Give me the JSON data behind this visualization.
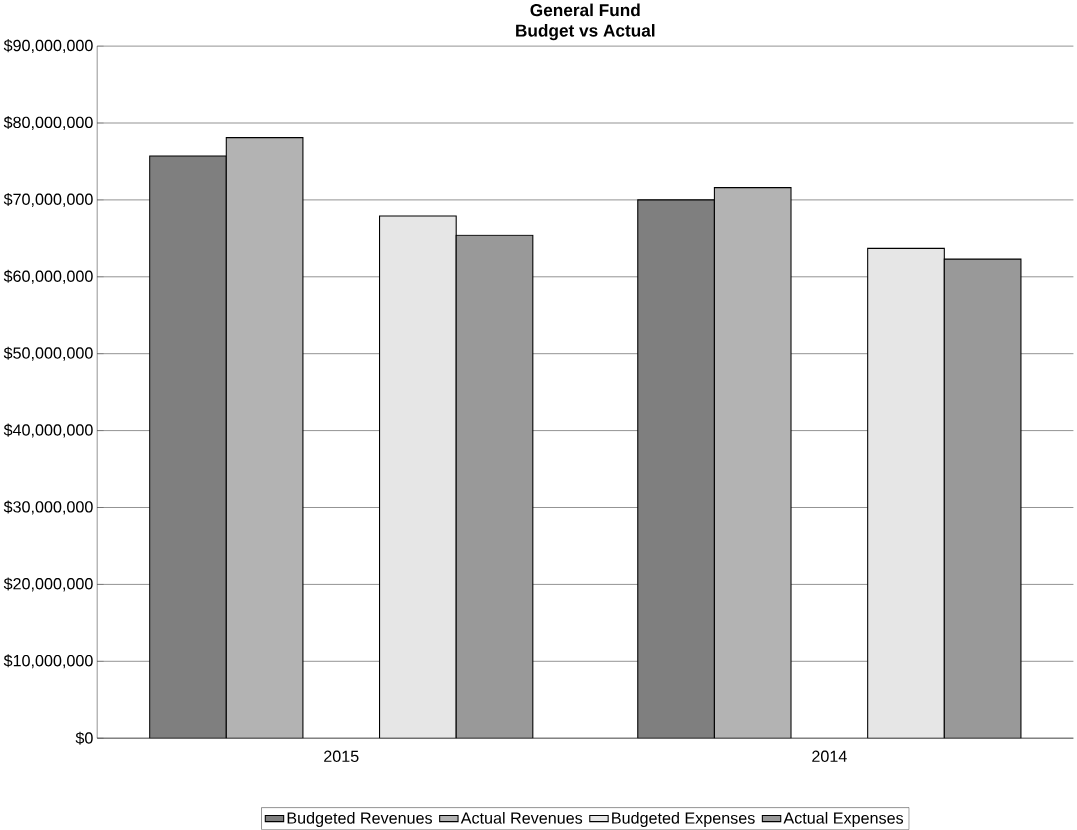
{
  "chart_data": {
    "type": "bar",
    "title": "General Fund",
    "subtitle": "Budget vs Actual",
    "categories": [
      "2015",
      "2014"
    ],
    "series": [
      {
        "name": "Budgeted Revenues",
        "color": "#7f7f7f",
        "values": [
          75700000,
          70000000
        ]
      },
      {
        "name": "Actual Revenues",
        "color": "#b3b3b3",
        "values": [
          78100000,
          71600000
        ]
      },
      {
        "name": "Budgeted Expenses",
        "color": "#e6e6e6",
        "values": [
          67900000,
          63700000
        ]
      },
      {
        "name": "Actual Expenses",
        "color": "#999999",
        "values": [
          65400000,
          62300000
        ]
      }
    ],
    "ylim": [
      0,
      90000000
    ],
    "yticks": [
      {
        "value": 0,
        "label": "$0"
      },
      {
        "value": 10000000,
        "label": "$10,000,000"
      },
      {
        "value": 20000000,
        "label": "$20,000,000"
      },
      {
        "value": 30000000,
        "label": "$30,000,000"
      },
      {
        "value": 40000000,
        "label": "$40,000,000"
      },
      {
        "value": 50000000,
        "label": "$50,000,000"
      },
      {
        "value": 60000000,
        "label": "$60,000,000"
      },
      {
        "value": 70000000,
        "label": "$70,000,000"
      },
      {
        "value": 80000000,
        "label": "$80,000,000"
      },
      {
        "value": 90000000,
        "label": "$90,000,000"
      }
    ],
    "grid": "y",
    "legend": "bottom"
  }
}
